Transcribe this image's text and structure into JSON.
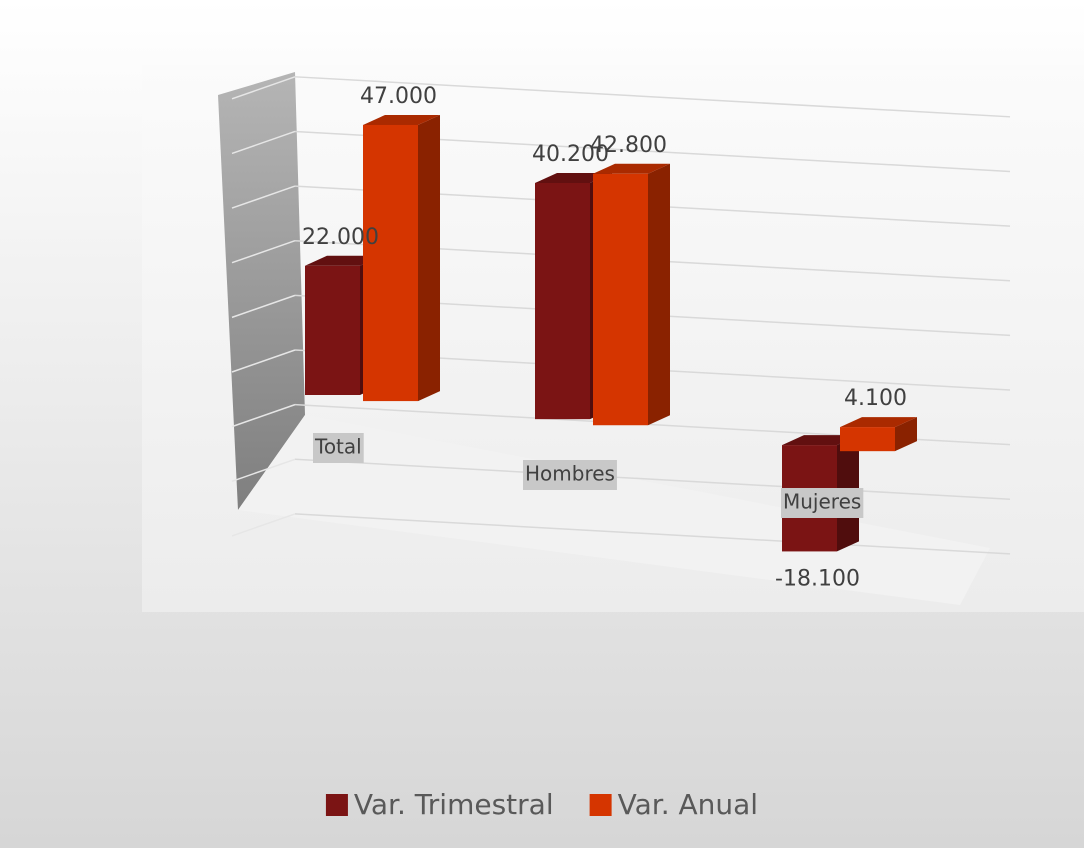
{
  "chart_data": {
    "type": "bar3d",
    "categories": [
      "Total",
      "Hombres",
      "Mujeres"
    ],
    "series": [
      {
        "name": "Var. Trimestral",
        "color": "#7b1414",
        "values": [
          22000,
          40200,
          -18100
        ],
        "value_labels": [
          "22.000",
          "40.200",
          "-18.100"
        ]
      },
      {
        "name": "Var. Anual",
        "color": "#d53500",
        "values": [
          47000,
          42800,
          4100
        ],
        "value_labels": [
          "47.000",
          "42.800",
          "4.100"
        ]
      }
    ],
    "ylim": [
      -30000,
      50000
    ],
    "yticks": [
      -30000,
      -20000,
      -10000,
      0,
      10000,
      20000,
      30000,
      40000,
      50000
    ],
    "grid": true,
    "legend": "bottom"
  }
}
